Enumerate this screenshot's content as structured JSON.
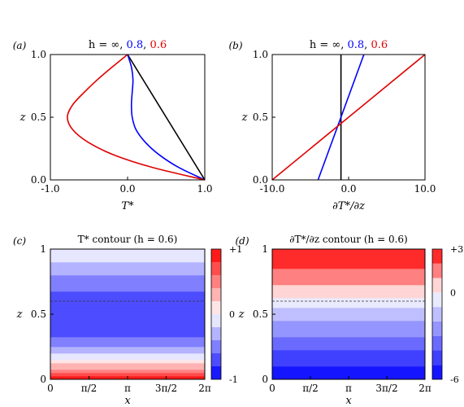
{
  "chart_data": [
    {
      "panel_label": "(a)",
      "type": "line",
      "title_prefix": "h = ∞, ",
      "title_parts": [
        {
          "text": "0.8",
          "color": "#0000ff"
        },
        {
          "text": ", ",
          "color": "#000000"
        },
        {
          "text": "0.6",
          "color": "#e00000"
        }
      ],
      "xlabel": "T*",
      "ylabel": "z",
      "xlim": [
        -1.0,
        1.0
      ],
      "ylim": [
        0.0,
        1.0
      ],
      "x_ticks": [
        -1.0,
        0.0,
        1.0
      ],
      "x_tick_labels": [
        "-1.0",
        "0.0",
        "1.0"
      ],
      "y_ticks": [
        0.0,
        0.5,
        1.0
      ],
      "y_tick_labels": [
        "0.0",
        "0.5",
        "1.0"
      ],
      "series": [
        {
          "color": "#000000",
          "y": [
            0,
            0.25,
            0.5,
            0.75,
            1
          ],
          "x": [
            1,
            0.75,
            0.5,
            0.25,
            0
          ]
        },
        {
          "color": "#0000ff",
          "y": [
            0,
            0.1,
            0.2,
            0.3,
            0.4,
            0.5,
            0.6,
            0.7,
            0.8,
            0.9,
            1.0
          ],
          "x": [
            1.0,
            0.66,
            0.41,
            0.23,
            0.11,
            0.06,
            0.05,
            0.06,
            0.07,
            0.05,
            0.0
          ]
        },
        {
          "color": "#e00000",
          "y": [
            0,
            0.1,
            0.2,
            0.3,
            0.4,
            0.5,
            0.6,
            0.7,
            0.8,
            0.9,
            1.0
          ],
          "x": [
            1.0,
            0.32,
            -0.18,
            -0.51,
            -0.71,
            -0.78,
            -0.71,
            -0.56,
            -0.39,
            -0.2,
            0.0
          ]
        }
      ]
    },
    {
      "panel_label": "(b)",
      "type": "line",
      "title_prefix": "h = ∞, ",
      "title_parts": [
        {
          "text": "0.8",
          "color": "#0000ff"
        },
        {
          "text": ", ",
          "color": "#000000"
        },
        {
          "text": "0.6",
          "color": "#e00000"
        }
      ],
      "xlabel": "∂T*/∂z",
      "ylabel": "z",
      "xlim": [
        -10.0,
        10.0
      ],
      "ylim": [
        0.0,
        1.0
      ],
      "x_ticks": [
        -10.0,
        0.0,
        10.0
      ],
      "x_tick_labels": [
        "-10.0",
        "0.0",
        "10.0"
      ],
      "y_ticks": [
        0.0,
        0.5,
        1.0
      ],
      "y_tick_labels": [
        "0.0",
        "0.5",
        "1.0"
      ],
      "series": [
        {
          "color": "#000000",
          "y": [
            0,
            1
          ],
          "x": [
            -1.0,
            -1.0
          ]
        },
        {
          "color": "#0000ff",
          "y": [
            0,
            1
          ],
          "x": [
            -4.0,
            2.0
          ]
        },
        {
          "color": "#e00000",
          "y": [
            0,
            1
          ],
          "x": [
            -10.0,
            10.0
          ]
        }
      ]
    },
    {
      "panel_label": "(c)",
      "type": "heatmap",
      "title": "T* contour (h = 0.6)",
      "xlabel": "x",
      "ylabel": "z",
      "xlim": [
        0,
        6.2832
      ],
      "ylim": [
        0,
        1
      ],
      "x_ticks": [
        0,
        1.5708,
        3.1416,
        4.7124,
        6.2832
      ],
      "x_tick_labels": [
        "0",
        "π/2",
        "π",
        "3π/2",
        "2π"
      ],
      "y_ticks": [
        0,
        0.5,
        1
      ],
      "y_tick_labels": [
        "0",
        "0.5",
        "1"
      ],
      "dashed_line_z": 0.6,
      "colorbar": {
        "labels": [
          "+1",
          "0",
          "-1"
        ],
        "values": [
          1,
          0,
          -1
        ],
        "min": -1,
        "max": 1,
        "levels": 10
      },
      "profile": {
        "z": [
          0,
          0.05,
          0.1,
          0.15,
          0.2,
          0.25,
          0.3,
          0.35,
          0.4,
          0.45,
          0.5,
          0.55,
          0.6,
          0.65,
          0.7,
          0.75,
          0.8,
          0.85,
          0.9,
          0.95,
          1.0
        ],
        "value": [
          1.0,
          0.63,
          0.32,
          0.05,
          -0.18,
          -0.38,
          -0.53,
          -0.65,
          -0.73,
          -0.77,
          -0.78,
          -0.77,
          -0.73,
          -0.66,
          -0.58,
          -0.48,
          -0.39,
          -0.29,
          -0.2,
          -0.1,
          0.0
        ]
      }
    },
    {
      "panel_label": "(d)",
      "type": "heatmap",
      "title": "∂T*/∂z contour (h = 0.6)",
      "xlabel": "x",
      "ylabel": "z",
      "xlim": [
        0,
        6.2832
      ],
      "ylim": [
        0,
        1
      ],
      "x_ticks": [
        0,
        1.5708,
        3.1416,
        4.7124,
        6.2832
      ],
      "x_tick_labels": [
        "0",
        "π/2",
        "π",
        "3π/2",
        "2π"
      ],
      "y_ticks": [
        0,
        0.5,
        1
      ],
      "y_tick_labels": [
        "0",
        "0.5",
        "1"
      ],
      "dashed_line_z": 0.6,
      "colorbar": {
        "labels": [
          "+3",
          "0",
          "-6"
        ],
        "values": [
          3,
          0,
          -6
        ],
        "min": -6,
        "max": 3,
        "levels": 9
      },
      "profile": {
        "z": [
          0,
          0.1,
          0.2,
          0.3,
          0.4,
          0.5,
          0.6,
          0.7,
          0.8,
          0.9,
          1.0
        ],
        "value": [
          -6.0,
          -5.1,
          -4.2,
          -3.3,
          -2.4,
          -1.5,
          -0.3,
          0.7,
          1.6,
          2.4,
          3.0
        ]
      }
    }
  ]
}
